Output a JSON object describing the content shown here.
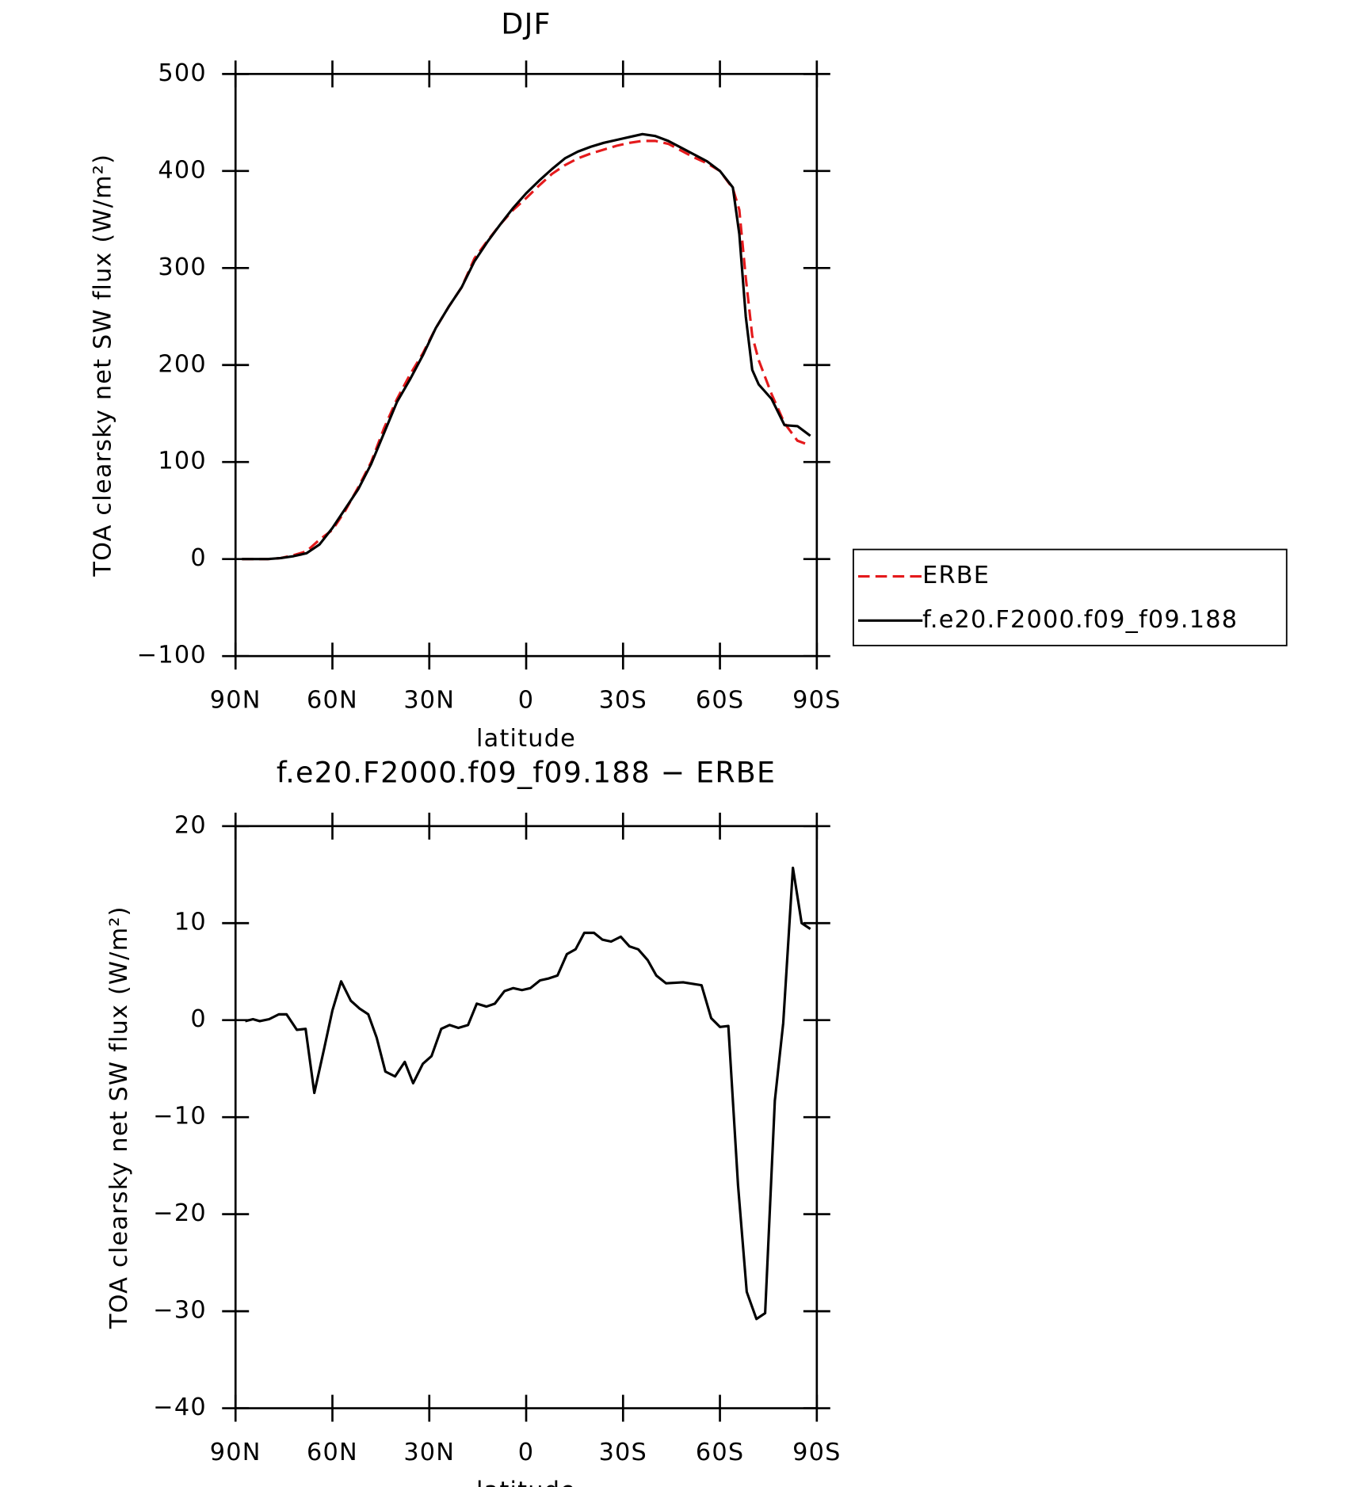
{
  "chart_data": [
    {
      "type": "line",
      "title": "DJF",
      "xlabel": "latitude",
      "ylabel": "TOA clearsky net SW flux (W/m²)",
      "x": [
        88,
        84,
        80,
        76,
        72,
        68,
        64,
        60,
        56,
        52,
        48,
        44,
        40,
        36,
        32,
        28,
        24,
        20,
        16,
        12,
        8,
        4,
        0,
        -4,
        -8,
        -12,
        -16,
        -20,
        -24,
        -28,
        -32,
        -36,
        -40,
        -44,
        -48,
        -52,
        -56,
        -60,
        -64,
        -66,
        -68,
        -70,
        -72,
        -76,
        -80,
        -84,
        -88
      ],
      "series": [
        {
          "name": "ERBE",
          "color": "#e41a1c",
          "dashed": true,
          "values": [
            0,
            0,
            0,
            1,
            4,
            8,
            20,
            30,
            50,
            74,
            100,
            135,
            165,
            190,
            212,
            238,
            260,
            280,
            310,
            328,
            345,
            360,
            372,
            385,
            397,
            406,
            413,
            418,
            422,
            426,
            429,
            431,
            431,
            428,
            421,
            414,
            408,
            400,
            382,
            360,
            290,
            230,
            205,
            170,
            140,
            122,
            117
          ]
        },
        {
          "name": "f.e20.F2000.f09_f09.188",
          "color": "#000000",
          "dashed": false,
          "values": [
            0,
            0,
            0,
            1,
            3,
            6,
            15,
            32,
            52,
            72,
            98,
            130,
            162,
            185,
            210,
            238,
            260,
            280,
            307,
            327,
            345,
            362,
            377,
            390,
            402,
            413,
            420,
            425,
            429,
            432,
            435,
            438,
            436,
            431,
            424,
            417,
            410,
            400,
            383,
            335,
            250,
            195,
            180,
            165,
            138,
            137,
            127
          ]
        }
      ],
      "xlim": [
        90,
        -90
      ],
      "xticks": [
        {
          "value": 90,
          "label": "90N"
        },
        {
          "value": 60,
          "label": "60N"
        },
        {
          "value": 30,
          "label": "30N"
        },
        0,
        {
          "value": -30,
          "label": "30S"
        },
        {
          "value": -60,
          "label": "60S"
        },
        {
          "value": -90,
          "label": "90S"
        }
      ],
      "ylim": [
        -100,
        500
      ],
      "yticks": [
        {
          "value": -100,
          "label": "−100"
        },
        0,
        100,
        200,
        300,
        400,
        500
      ],
      "legend": "right"
    },
    {
      "type": "line",
      "title": "f.e20.F2000.f09_f09.188 − ERBE",
      "xlabel": "latitude",
      "ylabel": "TOA clearsky net SW flux (W/m²)",
      "x": [
        87,
        84.6,
        82.5,
        79.6,
        76.6,
        74.2,
        71,
        68.3,
        65.6,
        62.6,
        60,
        57.3,
        54.3,
        51.6,
        48.9,
        46.3,
        43.6,
        40.6,
        37.6,
        35,
        32,
        29.3,
        26.3,
        23.7,
        21,
        18,
        15.3,
        12.3,
        9.7,
        6.7,
        4,
        1.3,
        -1.3,
        -4.3,
        -7,
        -9.7,
        -12.6,
        -15.3,
        -18,
        -21,
        -23.6,
        -26.3,
        -29.3,
        -32,
        -34.7,
        -37.6,
        -40.3,
        -43.3,
        -48.6,
        -54.3,
        -57.3,
        -60,
        -62.6,
        -65.6,
        -68.3,
        -71.3,
        -74,
        -77,
        -79.6,
        -82.6,
        -85.3,
        -88
      ],
      "series": [
        {
          "color": "#000000",
          "dashed": false,
          "values": [
            -0.1,
            0.1,
            -0.1,
            0.1,
            0.6,
            0.6,
            -1.0,
            -0.9,
            -7.5,
            -3,
            1,
            4,
            2,
            1.2,
            0.6,
            -1.8,
            -5.3,
            -5.8,
            -4.3,
            -6.5,
            -4.5,
            -3.7,
            -0.9,
            -0.5,
            -0.8,
            -0.5,
            1.7,
            1.4,
            1.7,
            3,
            3.3,
            3.1,
            3.3,
            4.1,
            4.3,
            4.6,
            6.8,
            7.3,
            9.0,
            9.0,
            8.3,
            8.1,
            8.6,
            7.6,
            7.3,
            6.2,
            4.6,
            3.8,
            3.9,
            3.6,
            0.2,
            -0.7,
            -0.6,
            -17,
            -28,
            -30.8,
            -30.2,
            -8.3,
            -0.3,
            15.7,
            10,
            9.4
          ]
        }
      ],
      "xlim": [
        90,
        -90
      ],
      "xticks": [
        {
          "value": 90,
          "label": "90N"
        },
        {
          "value": 60,
          "label": "60N"
        },
        {
          "value": 30,
          "label": "30N"
        },
        0,
        {
          "value": -30,
          "label": "30S"
        },
        {
          "value": -60,
          "label": "60S"
        },
        {
          "value": -90,
          "label": "90S"
        }
      ],
      "ylim": [
        -40,
        20
      ],
      "yticks": [
        {
          "value": -40,
          "label": "−40"
        },
        {
          "value": -30,
          "label": "−30"
        },
        {
          "value": -20,
          "label": "−20"
        },
        {
          "value": -10,
          "label": "−10"
        },
        0,
        10,
        20
      ]
    }
  ]
}
